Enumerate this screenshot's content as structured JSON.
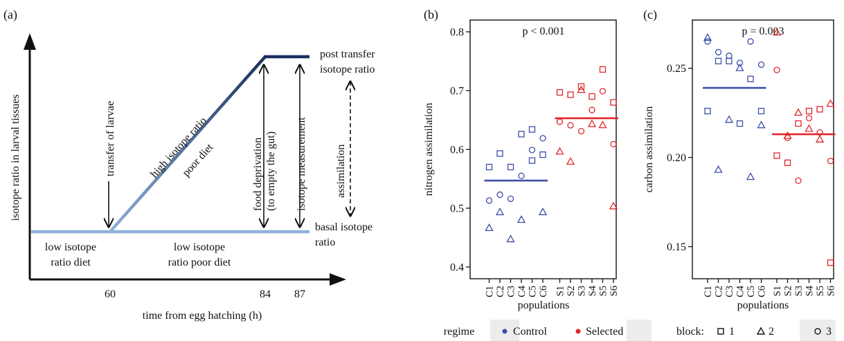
{
  "colors": {
    "control": "#3a4ea8",
    "selected": "#e0262b",
    "axis": "#111111",
    "diet_light": "#8fb1da",
    "diet_dark": "#1a2f5e",
    "legend_bg": "#ececec"
  },
  "panel_a": {
    "label": "(a)",
    "ylabel": "isotope ratio in larval tissues",
    "xlabel": "time from egg hatching (h)",
    "xticks": [
      "60",
      "84",
      "87"
    ],
    "annotations": {
      "transfer": "transfer of larvae",
      "high_ratio": "high isotope ratio",
      "poor_diet": "poor diet",
      "food_dep_1": "food deprivation",
      "food_dep_2": "(to empty the gut)",
      "isotope_meas": "isotope measurement",
      "assimilation": "assimilation",
      "post_1": "post transfer",
      "post_2": "isotope ratio",
      "basal_1": "basal isotope",
      "basal_2": "ratio",
      "low_diet_1": "low isotope",
      "low_diet_2": "ratio diet",
      "low_poor_1": "low isotope",
      "low_poor_2": "ratio poor diet"
    }
  },
  "chart_data": [
    {
      "type": "scatter",
      "panel": "(b)",
      "annotation": "p < 0.001",
      "ylabel": "nitrogen assimilation",
      "xlabel": "populations",
      "categories": [
        "C1",
        "C2",
        "C3",
        "C4",
        "C5",
        "C6",
        "S1",
        "S2",
        "S3",
        "S4",
        "S5",
        "S6"
      ],
      "ylim": [
        0.38,
        0.82
      ],
      "yticks": [
        "0.4",
        "0.5",
        "0.6",
        "0.7",
        "0.8"
      ],
      "series": [
        {
          "name": "Control",
          "block": "1",
          "marker": "square",
          "points": [
            [
              "C1",
              0.57
            ],
            [
              "C2",
              0.593
            ],
            [
              "C3",
              0.57
            ],
            [
              "C4",
              0.626
            ],
            [
              "C5",
              0.634
            ],
            [
              "C5",
              0.581
            ],
            [
              "C6",
              0.591
            ]
          ]
        },
        {
          "name": "Control",
          "block": "2",
          "marker": "triangle",
          "points": [
            [
              "C1",
              0.466
            ],
            [
              "C2",
              0.493
            ],
            [
              "C3",
              0.447
            ],
            [
              "C4",
              0.48
            ],
            [
              "C6",
              0.493
            ]
          ]
        },
        {
          "name": "Control",
          "block": "3",
          "marker": "circle",
          "points": [
            [
              "C1",
              0.513
            ],
            [
              "C2",
              0.523
            ],
            [
              "C3",
              0.516
            ],
            [
              "C4",
              0.555
            ],
            [
              "C5",
              0.599
            ],
            [
              "C6",
              0.619
            ]
          ]
        },
        {
          "name": "Selected",
          "block": "1",
          "marker": "square",
          "points": [
            [
              "S1",
              0.697
            ],
            [
              "S2",
              0.693
            ],
            [
              "S3",
              0.707
            ],
            [
              "S4",
              0.69
            ],
            [
              "S5",
              0.736
            ],
            [
              "S6",
              0.68
            ]
          ]
        },
        {
          "name": "Selected",
          "block": "2",
          "marker": "triangle",
          "points": [
            [
              "S1",
              0.596
            ],
            [
              "S2",
              0.579
            ],
            [
              "S3",
              0.701
            ],
            [
              "S4",
              0.643
            ],
            [
              "S5",
              0.641
            ],
            [
              "S6",
              0.503
            ]
          ]
        },
        {
          "name": "Selected",
          "block": "3",
          "marker": "circle",
          "points": [
            [
              "S1",
              0.647
            ],
            [
              "S2",
              0.641
            ],
            [
              "S3",
              0.631
            ],
            [
              "S4",
              0.667
            ],
            [
              "S5",
              0.699
            ],
            [
              "S6",
              0.609
            ]
          ]
        }
      ],
      "means": [
        {
          "name": "Control",
          "from": "C1",
          "to": "C6",
          "value": 0.547
        },
        {
          "name": "Selected",
          "from": "S1",
          "to": "S6",
          "value": 0.653
        }
      ]
    },
    {
      "type": "scatter",
      "panel": "(c)",
      "annotation": "p = 0.003",
      "ylabel": "carbon assimilation",
      "xlabel": "populations",
      "categories": [
        "C1",
        "C2",
        "C3",
        "C4",
        "C5",
        "C6",
        "S1",
        "S2",
        "S3",
        "S4",
        "S5",
        "S6"
      ],
      "ylim": [
        0.132,
        0.277
      ],
      "yticks": [
        "0.15",
        "0.20",
        "0.25"
      ],
      "series": [
        {
          "name": "Control",
          "block": "1",
          "marker": "square",
          "points": [
            [
              "C1",
              0.226
            ],
            [
              "C2",
              0.254
            ],
            [
              "C3",
              0.254
            ],
            [
              "C4",
              0.219
            ],
            [
              "C5",
              0.244
            ],
            [
              "C6",
              0.226
            ]
          ]
        },
        {
          "name": "Control",
          "block": "2",
          "marker": "triangle",
          "points": [
            [
              "C1",
              0.267
            ],
            [
              "C2",
              0.193
            ],
            [
              "C3",
              0.221
            ],
            [
              "C4",
              0.25
            ],
            [
              "C5",
              0.189
            ],
            [
              "C6",
              0.218
            ]
          ]
        },
        {
          "name": "Control",
          "block": "3",
          "marker": "circle",
          "points": [
            [
              "C1",
              0.265
            ],
            [
              "C2",
              0.259
            ],
            [
              "C3",
              0.257
            ],
            [
              "C4",
              0.253
            ],
            [
              "C5",
              0.265
            ],
            [
              "C6",
              0.252
            ]
          ]
        },
        {
          "name": "Selected",
          "block": "1",
          "marker": "square",
          "points": [
            [
              "S1",
              0.201
            ],
            [
              "S2",
              0.197
            ],
            [
              "S3",
              0.219
            ],
            [
              "S4",
              0.226
            ],
            [
              "S5",
              0.227
            ],
            [
              "S6",
              0.141
            ]
          ]
        },
        {
          "name": "Selected",
          "block": "2",
          "marker": "triangle",
          "points": [
            [
              "S1",
              0.27
            ],
            [
              "S2",
              0.212
            ],
            [
              "S3",
              0.225
            ],
            [
              "S4",
              0.216
            ],
            [
              "S5",
              0.21
            ],
            [
              "S6",
              0.23
            ]
          ]
        },
        {
          "name": "Selected",
          "block": "3",
          "marker": "circle",
          "points": [
            [
              "S1",
              0.249
            ],
            [
              "S2",
              0.211
            ],
            [
              "S3",
              0.187
            ],
            [
              "S4",
              0.222
            ],
            [
              "S5",
              0.214
            ],
            [
              "S6",
              0.198
            ]
          ]
        }
      ],
      "means": [
        {
          "name": "Control",
          "from": "C1",
          "to": "C6",
          "value": 0.239
        },
        {
          "name": "Selected",
          "from": "S1",
          "to": "S6",
          "value": 0.213
        }
      ]
    }
  ],
  "legend": {
    "regime_label": "regime",
    "control": "Control",
    "selected": "Selected",
    "block_label": "block:",
    "block1": "1",
    "block2": "2",
    "block3": "3"
  }
}
